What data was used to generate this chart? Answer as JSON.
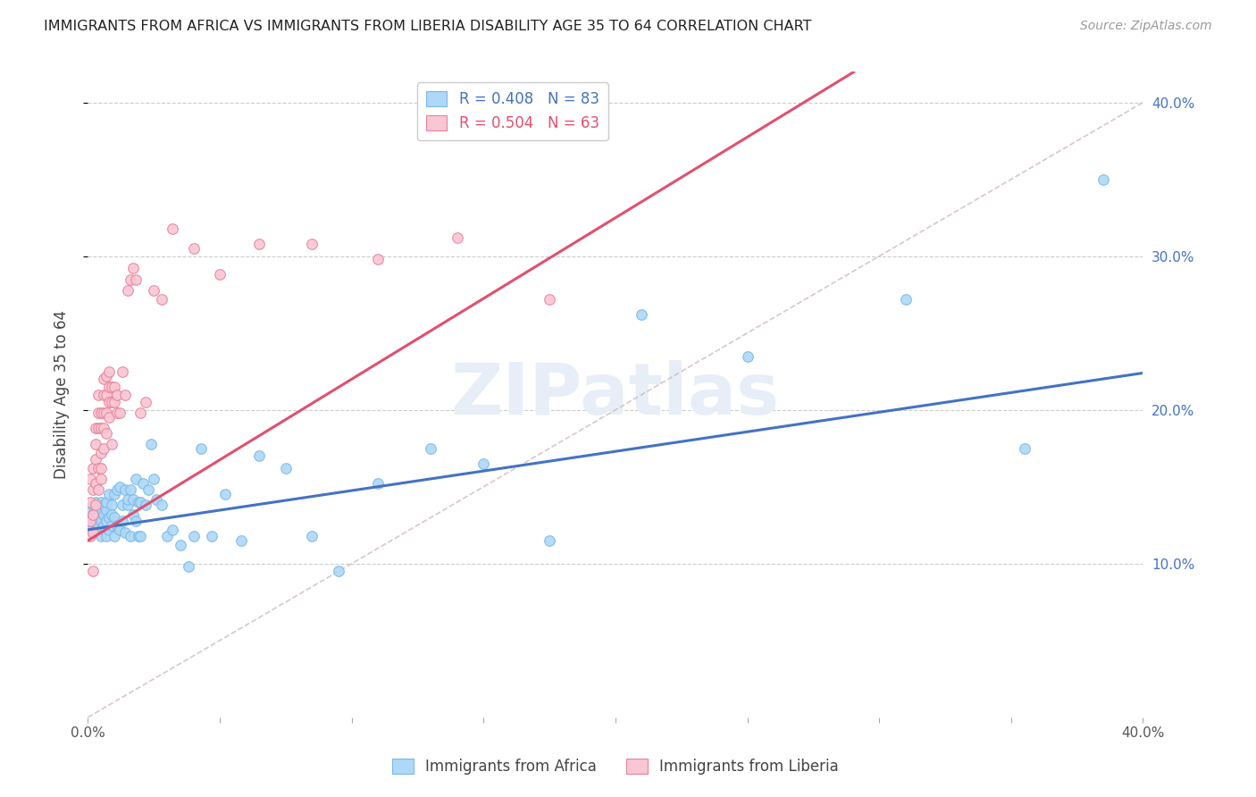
{
  "title": "IMMIGRANTS FROM AFRICA VS IMMIGRANTS FROM LIBERIA DISABILITY AGE 35 TO 64 CORRELATION CHART",
  "source": "Source: ZipAtlas.com",
  "ylabel": "Disability Age 35 to 64",
  "xlim": [
    0.0,
    0.4
  ],
  "ylim": [
    0.0,
    0.42
  ],
  "africa_color": "#add8f7",
  "africa_edge": "#7ab8e8",
  "liberia_color": "#f9c6d4",
  "liberia_edge": "#e8829a",
  "africa_line_color": "#4472c4",
  "liberia_line_color": "#e05070",
  "diagonal_color": "#ccbbbb",
  "legend_africa_R": "R = 0.408",
  "legend_africa_N": "N = 83",
  "legend_liberia_R": "R = 0.504",
  "legend_liberia_N": "N = 63",
  "africa_intercept": 0.122,
  "africa_slope": 0.255,
  "liberia_intercept": 0.115,
  "liberia_slope": 1.05,
  "africa_x": [
    0.001,
    0.001,
    0.002,
    0.002,
    0.002,
    0.003,
    0.003,
    0.003,
    0.003,
    0.004,
    0.004,
    0.004,
    0.004,
    0.005,
    0.005,
    0.005,
    0.005,
    0.005,
    0.006,
    0.006,
    0.006,
    0.007,
    0.007,
    0.007,
    0.007,
    0.008,
    0.008,
    0.008,
    0.009,
    0.009,
    0.009,
    0.01,
    0.01,
    0.01,
    0.011,
    0.011,
    0.012,
    0.012,
    0.013,
    0.013,
    0.014,
    0.014,
    0.015,
    0.015,
    0.016,
    0.016,
    0.017,
    0.017,
    0.018,
    0.018,
    0.019,
    0.019,
    0.02,
    0.02,
    0.021,
    0.022,
    0.023,
    0.024,
    0.025,
    0.026,
    0.028,
    0.03,
    0.032,
    0.035,
    0.038,
    0.04,
    0.043,
    0.047,
    0.052,
    0.058,
    0.065,
    0.075,
    0.085,
    0.095,
    0.11,
    0.13,
    0.15,
    0.175,
    0.21,
    0.25,
    0.31,
    0.355,
    0.385
  ],
  "africa_y": [
    0.13,
    0.135,
    0.125,
    0.132,
    0.138,
    0.128,
    0.135,
    0.14,
    0.122,
    0.133,
    0.138,
    0.125,
    0.13,
    0.128,
    0.135,
    0.14,
    0.122,
    0.118,
    0.132,
    0.138,
    0.125,
    0.135,
    0.128,
    0.14,
    0.118,
    0.145,
    0.13,
    0.122,
    0.138,
    0.125,
    0.132,
    0.145,
    0.13,
    0.118,
    0.148,
    0.125,
    0.15,
    0.122,
    0.138,
    0.128,
    0.148,
    0.12,
    0.138,
    0.142,
    0.148,
    0.118,
    0.132,
    0.142,
    0.155,
    0.128,
    0.14,
    0.118,
    0.14,
    0.118,
    0.152,
    0.138,
    0.148,
    0.178,
    0.155,
    0.142,
    0.138,
    0.118,
    0.122,
    0.112,
    0.098,
    0.118,
    0.175,
    0.118,
    0.145,
    0.115,
    0.17,
    0.162,
    0.118,
    0.095,
    0.152,
    0.175,
    0.165,
    0.115,
    0.262,
    0.235,
    0.272,
    0.175,
    0.35
  ],
  "liberia_x": [
    0.001,
    0.001,
    0.001,
    0.001,
    0.002,
    0.002,
    0.002,
    0.002,
    0.002,
    0.003,
    0.003,
    0.003,
    0.003,
    0.003,
    0.004,
    0.004,
    0.004,
    0.004,
    0.004,
    0.005,
    0.005,
    0.005,
    0.005,
    0.005,
    0.006,
    0.006,
    0.006,
    0.006,
    0.006,
    0.007,
    0.007,
    0.007,
    0.007,
    0.008,
    0.008,
    0.008,
    0.008,
    0.009,
    0.009,
    0.009,
    0.01,
    0.01,
    0.011,
    0.011,
    0.012,
    0.013,
    0.014,
    0.015,
    0.016,
    0.017,
    0.018,
    0.02,
    0.022,
    0.025,
    0.028,
    0.032,
    0.04,
    0.05,
    0.065,
    0.085,
    0.11,
    0.14,
    0.175
  ],
  "liberia_y": [
    0.128,
    0.14,
    0.155,
    0.118,
    0.132,
    0.148,
    0.162,
    0.12,
    0.095,
    0.138,
    0.152,
    0.168,
    0.178,
    0.188,
    0.148,
    0.162,
    0.188,
    0.198,
    0.21,
    0.155,
    0.172,
    0.188,
    0.198,
    0.162,
    0.175,
    0.188,
    0.198,
    0.21,
    0.22,
    0.185,
    0.198,
    0.21,
    0.222,
    0.195,
    0.205,
    0.215,
    0.225,
    0.205,
    0.215,
    0.178,
    0.205,
    0.215,
    0.198,
    0.21,
    0.198,
    0.225,
    0.21,
    0.278,
    0.285,
    0.292,
    0.285,
    0.198,
    0.205,
    0.278,
    0.272,
    0.318,
    0.305,
    0.288,
    0.308,
    0.308,
    0.298,
    0.312,
    0.272
  ]
}
